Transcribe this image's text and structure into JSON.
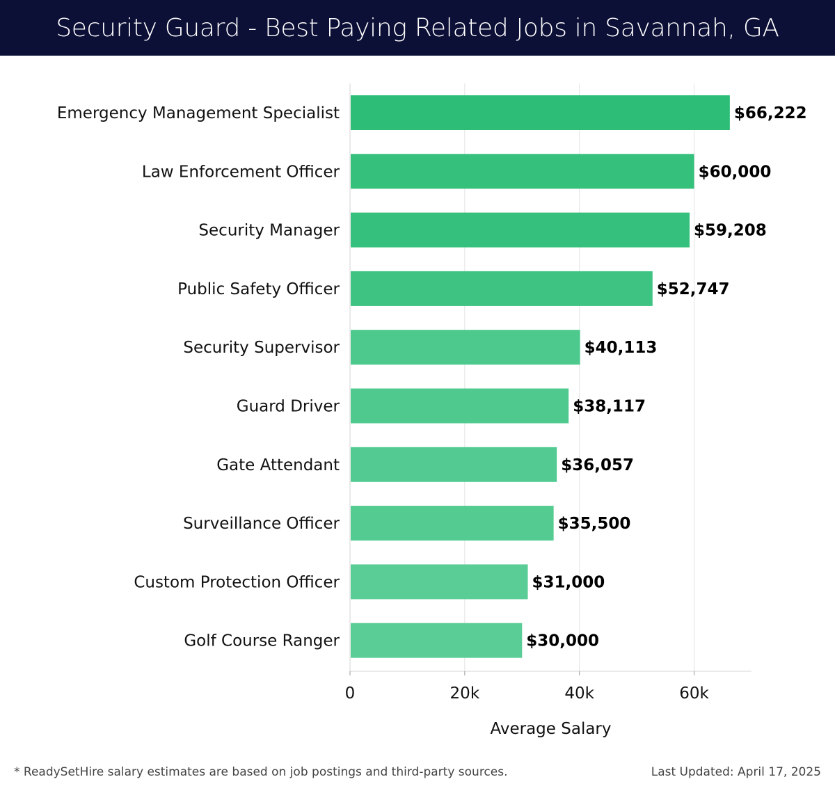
{
  "header": {
    "title": "Security Guard - Best Paying Related Jobs in Savannah, GA"
  },
  "chart_data": {
    "type": "bar",
    "orientation": "horizontal",
    "categories": [
      "Emergency Management Specialist",
      "Law Enforcement Officer",
      "Security Manager",
      "Public Safety Officer",
      "Security Supervisor",
      "Guard Driver",
      "Gate Attendant",
      "Surveillance Officer",
      "Custom Protection Officer",
      "Golf Course Ranger"
    ],
    "values": [
      66222,
      60000,
      59208,
      52747,
      40113,
      38117,
      36057,
      35500,
      31000,
      30000
    ],
    "value_labels": [
      "$66,222",
      "$60,000",
      "$59,208",
      "$52,747",
      "$40,113",
      "$38,117",
      "$36,057",
      "$35,500",
      "$31,000",
      "$30,000"
    ],
    "xlabel": "Average Salary",
    "xlim": [
      0,
      70000
    ],
    "xticks": [
      0,
      20000,
      40000,
      60000
    ],
    "xtick_labels": [
      "0",
      "20k",
      "40k",
      "60k"
    ],
    "grid": true,
    "bar_color_high": "#2dbd77",
    "bar_color_low": "#5acd96"
  },
  "footer": {
    "note": "* ReadySetHire salary estimates are based on job postings and third-party sources.",
    "updated": "Last Updated: April 17, 2025"
  }
}
